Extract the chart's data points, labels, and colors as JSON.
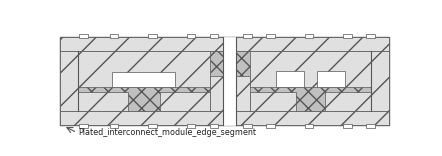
{
  "label": "Plated_interconnect_module_edge_segment",
  "bg_color": "#ffffff",
  "lc": "#555555",
  "diag_fill": "#e0e0e0",
  "cross_fill": "#c0c0c0",
  "white_fill": "#ffffff",
  "fig_w": 4.42,
  "fig_h": 1.56,
  "dpi": 100
}
